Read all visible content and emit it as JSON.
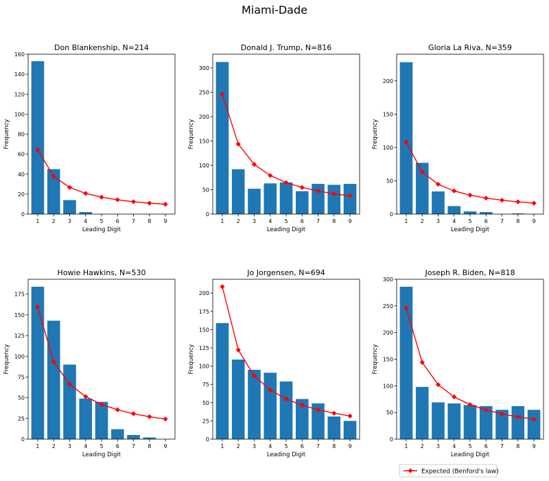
{
  "figure": {
    "title": "Miami-Dade",
    "legend_label": "Expected (Benford's law)",
    "legend_position": "bottom-right",
    "colors": {
      "bar": "#1f77b4",
      "expected": "#ff0000",
      "axis": "#000000",
      "background": "#ffffff"
    }
  },
  "chart_data": [
    {
      "type": "bar",
      "title": "Don Blankenship, N=214",
      "xlabel": "Leading Digit",
      "ylabel": "Frequency",
      "categories": [
        1,
        2,
        3,
        4,
        5,
        6,
        7,
        8,
        9
      ],
      "xticks": [
        "1",
        "2",
        "3",
        "4",
        "5",
        "6",
        "7",
        "8",
        "9"
      ],
      "ylim": [
        0,
        160
      ],
      "yticks": [
        0,
        20,
        40,
        60,
        80,
        100,
        120,
        140,
        160
      ],
      "series": [
        {
          "type": "bar",
          "values": [
            153,
            45,
            14,
            2,
            0,
            0,
            0,
            0,
            0
          ]
        },
        {
          "type": "line",
          "name": "Expected (Benford's law)",
          "values": [
            64.4,
            37.7,
            26.7,
            20.7,
            16.9,
            14.3,
            12.4,
            10.9,
            9.8
          ]
        }
      ]
    },
    {
      "type": "bar",
      "title": "Donald J. Trump, N=816",
      "xlabel": "Leading Digit",
      "ylabel": "Frequency",
      "categories": [
        1,
        2,
        3,
        4,
        5,
        6,
        7,
        8,
        9
      ],
      "xticks": [
        "1",
        "2",
        "3",
        "4",
        "5",
        "6",
        "7",
        "8",
        "9"
      ],
      "ylim": [
        0,
        328
      ],
      "yticks": [
        0,
        50,
        100,
        150,
        200,
        250,
        300
      ],
      "series": [
        {
          "type": "bar",
          "values": [
            312,
            92,
            52,
            63,
            65,
            47,
            62,
            60,
            62
          ]
        },
        {
          "type": "line",
          "name": "Expected (Benford's law)",
          "values": [
            245.6,
            143.7,
            101.9,
            79.1,
            64.6,
            54.6,
            47.3,
            41.7,
            37.3
          ]
        }
      ]
    },
    {
      "type": "bar",
      "title": "Gloria La Riva, N=359",
      "xlabel": "Leading Digit",
      "ylabel": "Frequency",
      "categories": [
        1,
        2,
        3,
        4,
        5,
        6,
        7,
        8,
        9
      ],
      "xticks": [
        "1",
        "2",
        "3",
        "4",
        "5",
        "6",
        "7",
        "8",
        "9"
      ],
      "ylim": [
        0,
        240
      ],
      "yticks": [
        0,
        50,
        100,
        150,
        200
      ],
      "series": [
        {
          "type": "bar",
          "values": [
            228,
            77,
            34,
            12,
            4,
            3,
            0,
            1,
            0
          ]
        },
        {
          "type": "line",
          "name": "Expected (Benford's law)",
          "values": [
            108.1,
            63.2,
            44.8,
            34.8,
            28.4,
            24.0,
            20.8,
            18.4,
            16.4
          ]
        }
      ]
    },
    {
      "type": "bar",
      "title": "Howie Hawkins, N=530",
      "xlabel": "Leading Digit",
      "ylabel": "Frequency",
      "categories": [
        1,
        2,
        3,
        4,
        5,
        6,
        7,
        8,
        9
      ],
      "xticks": [
        "1",
        "2",
        "3",
        "4",
        "5",
        "6",
        "7",
        "8",
        "9"
      ],
      "ylim": [
        0,
        193
      ],
      "yticks": [
        0,
        25,
        50,
        75,
        100,
        125,
        150,
        175
      ],
      "series": [
        {
          "type": "bar",
          "values": [
            184,
            143,
            90,
            49,
            45,
            12,
            5,
            2,
            0
          ]
        },
        {
          "type": "line",
          "name": "Expected (Benford's law)",
          "values": [
            159.5,
            93.3,
            66.2,
            51.4,
            42.0,
            35.5,
            30.7,
            27.1,
            24.3
          ]
        }
      ]
    },
    {
      "type": "bar",
      "title": "Jo Jorgensen, N=694",
      "xlabel": "Leading Digit",
      "ylabel": "Frequency",
      "categories": [
        1,
        2,
        3,
        4,
        5,
        6,
        7,
        8,
        9
      ],
      "xticks": [
        "1",
        "2",
        "3",
        "4",
        "5",
        "6",
        "7",
        "8",
        "9"
      ],
      "ylim": [
        0,
        219
      ],
      "yticks": [
        0,
        25,
        50,
        75,
        100,
        125,
        150,
        175,
        200
      ],
      "series": [
        {
          "type": "bar",
          "values": [
            159,
            109,
            95,
            91,
            79,
            55,
            49,
            31,
            25
          ]
        },
        {
          "type": "line",
          "name": "Expected (Benford's law)",
          "values": [
            208.9,
            122.2,
            86.7,
            67.3,
            55.0,
            46.5,
            40.2,
            35.5,
            31.7
          ]
        }
      ]
    },
    {
      "type": "bar",
      "title": "Joseph R. Biden, N=818",
      "xlabel": "Leading Digit",
      "ylabel": "Frequency",
      "categories": [
        1,
        2,
        3,
        4,
        5,
        6,
        7,
        8,
        9
      ],
      "xticks": [
        "1",
        "2",
        "3",
        "4",
        "5",
        "6",
        "7",
        "8",
        "9"
      ],
      "ylim": [
        0,
        300
      ],
      "yticks": [
        0,
        50,
        100,
        150,
        200,
        250,
        300
      ],
      "series": [
        {
          "type": "bar",
          "values": [
            286,
            98,
            69,
            67,
            64,
            62,
            55,
            62,
            55
          ]
        },
        {
          "type": "line",
          "name": "Expected (Benford's law)",
          "values": [
            246.2,
            144.0,
            102.2,
            79.3,
            64.8,
            54.8,
            47.4,
            41.8,
            37.4
          ]
        }
      ]
    }
  ]
}
